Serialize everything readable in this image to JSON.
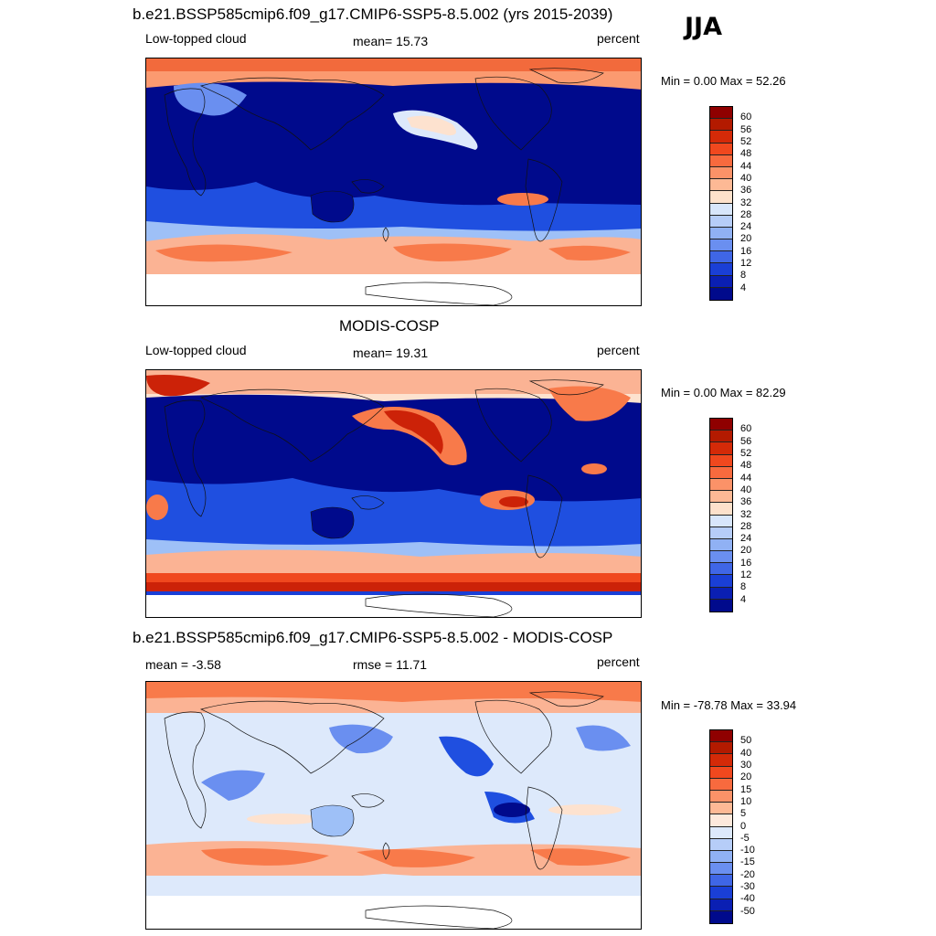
{
  "season": "JJA",
  "colors": {
    "deep_blue": "#000a8c",
    "blue": "#1f4fe0",
    "light_blue": "#9ec0f7",
    "pale": "#fde2cf",
    "orange": "#f87a4a",
    "red": "#cc2208",
    "dark_red": "#8f0000"
  },
  "panels": [
    {
      "title": "b.e21.BSSP585cmip6.f09_g17.CMIP6-SSP5-8.5.002 (yrs 2015-2039)",
      "left_label": "Low-topped cloud",
      "center_label": "mean=  15.73",
      "right_label": "percent",
      "minmax": "Min =    0.00 Max =  52.26",
      "colorbar_ticks": [
        "60",
        "56",
        "52",
        "48",
        "44",
        "40",
        "36",
        "32",
        "28",
        "24",
        "20",
        "16",
        "12",
        "8",
        "4"
      ],
      "colorbar_colors": [
        "#8f0000",
        "#b31a00",
        "#d42a08",
        "#f0481e",
        "#f86a3e",
        "#fb9268",
        "#fdb995",
        "#fde1cb",
        "#d8e6fb",
        "#b6cdf8",
        "#90b1f4",
        "#6a8ff0",
        "#3f66e6",
        "#1a3fd6",
        "#0a1fb3",
        "#000a8c"
      ]
    },
    {
      "title": "MODIS-COSP",
      "left_label": "Low-topped cloud",
      "center_label": "mean=  19.31",
      "right_label": "percent",
      "minmax": "Min =    0.00 Max =  82.29",
      "colorbar_ticks": [
        "60",
        "56",
        "52",
        "48",
        "44",
        "40",
        "36",
        "32",
        "28",
        "24",
        "20",
        "16",
        "12",
        "8",
        "4"
      ],
      "colorbar_colors": [
        "#8f0000",
        "#b31a00",
        "#d42a08",
        "#f0481e",
        "#f86a3e",
        "#fb9268",
        "#fdb995",
        "#fde1cb",
        "#d8e6fb",
        "#b6cdf8",
        "#90b1f4",
        "#6a8ff0",
        "#3f66e6",
        "#1a3fd6",
        "#0a1fb3",
        "#000a8c"
      ]
    },
    {
      "title": "b.e21.BSSP585cmip6.f09_g17.CMIP6-SSP5-8.5.002 - MODIS-COSP",
      "left_label": "mean =  -3.58",
      "center_label": "rmse =  11.71",
      "right_label": "percent",
      "minmax": "Min = -78.78 Max =  33.94",
      "colorbar_ticks": [
        "50",
        "40",
        "30",
        "20",
        "15",
        "10",
        "5",
        "0",
        "-5",
        "-10",
        "-15",
        "-20",
        "-30",
        "-40",
        "-50"
      ],
      "colorbar_colors": [
        "#8f0000",
        "#b31a00",
        "#d42a08",
        "#f0481e",
        "#f86a3e",
        "#fb9268",
        "#fdb995",
        "#fde9dc",
        "#dde9fb",
        "#b6cdf8",
        "#90b1f4",
        "#6a8ff0",
        "#3f66e6",
        "#1a3fd6",
        "#0a1fb3",
        "#000a8c"
      ]
    }
  ]
}
